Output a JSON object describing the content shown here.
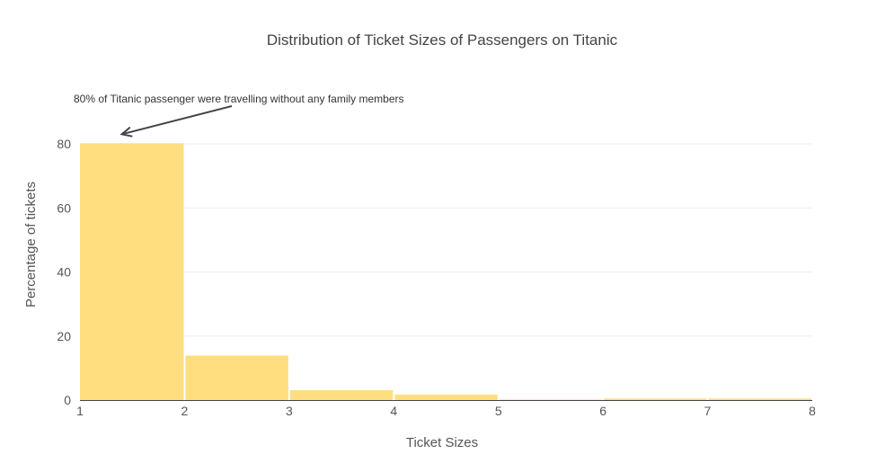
{
  "chart_data": {
    "type": "bar",
    "title": "Distribution of Ticket Sizes of Passengers on Titanic",
    "xlabel": "Ticket Sizes",
    "ylabel": "Percentage of tickets",
    "xlim": [
      1,
      8
    ],
    "ylim": [
      0,
      85
    ],
    "grid": true,
    "bar_color": "#FFDE80",
    "bins": [
      {
        "x0": 1,
        "x1": 2,
        "value": 80.2
      },
      {
        "x0": 2,
        "x1": 3,
        "value": 13.9
      },
      {
        "x0": 3,
        "x1": 4,
        "value": 3.1
      },
      {
        "x0": 4,
        "x1": 5,
        "value": 1.7
      },
      {
        "x0": 5,
        "x1": 6,
        "value": 0.2
      },
      {
        "x0": 6,
        "x1": 7,
        "value": 0.5
      },
      {
        "x0": 7,
        "x1": 8,
        "value": 0.5
      }
    ],
    "xticks": [
      "1",
      "2",
      "3",
      "4",
      "5",
      "6",
      "7",
      "8"
    ],
    "yticks": [
      "0",
      "20",
      "40",
      "60",
      "80"
    ],
    "annotation": {
      "text": "80% of Titanic passenger were travelling without any family members",
      "target_x": 1.4,
      "target_y": 83
    }
  }
}
